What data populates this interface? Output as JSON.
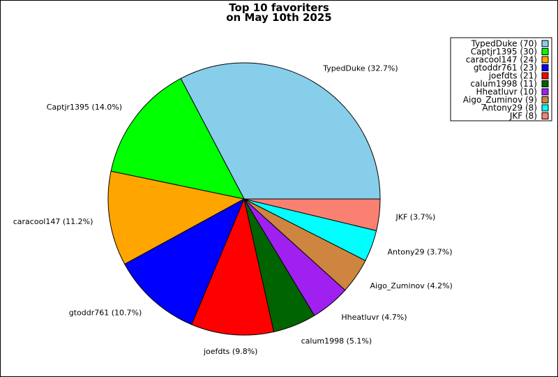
{
  "chart_data": {
    "type": "pie",
    "title": [
      "Top 10 favoriters",
      "on May 10th 2025"
    ],
    "legend_position": "top-right",
    "slices": [
      {
        "name": "TypedDuke",
        "value": 70,
        "percent_label": "32.7%",
        "legend_label": "TypedDuke (70)",
        "slice_label": "TypedDuke (32.7%)",
        "color": "#87ceeb"
      },
      {
        "name": "Captjr1395",
        "value": 30,
        "percent_label": "14.0%",
        "legend_label": "Captjr1395 (30)",
        "slice_label": "Captjr1395 (14.0%)",
        "color": "#00ff00"
      },
      {
        "name": "caracool147",
        "value": 24,
        "percent_label": "11.2%",
        "legend_label": "caracool147 (24)",
        "slice_label": "caracool147 (11.2%)",
        "color": "#ffa500"
      },
      {
        "name": "gtoddr761",
        "value": 23,
        "percent_label": "10.7%",
        "legend_label": "gtoddr761 (23)",
        "slice_label": "gtoddr761 (10.7%)",
        "color": "#0000ff"
      },
      {
        "name": "joefdts",
        "value": 21,
        "percent_label": "9.8%",
        "legend_label": "joefdts (21)",
        "slice_label": "joefdts (9.8%)",
        "color": "#ff0000"
      },
      {
        "name": "calum1998",
        "value": 11,
        "percent_label": "5.1%",
        "legend_label": "calum1998 (11)",
        "slice_label": "calum1998 (5.1%)",
        "color": "#006400"
      },
      {
        "name": "Hheatluvr",
        "value": 10,
        "percent_label": "4.7%",
        "legend_label": "Hheatluvr (10)",
        "slice_label": "Hheatluvr (4.7%)",
        "color": "#a020f0"
      },
      {
        "name": "Aigo_Zuminov",
        "value": 9,
        "percent_label": "4.2%",
        "legend_label": "Aigo_Zuminov (9)",
        "slice_label": "Aigo_Zuminov (4.2%)",
        "color": "#cd853f"
      },
      {
        "name": "Antony29",
        "value": 8,
        "percent_label": "3.7%",
        "legend_label": "Antony29 (8)",
        "slice_label": "Antony29 (3.7%)",
        "color": "#00ffff"
      },
      {
        "name": "JKF",
        "value": 8,
        "percent_label": "3.7%",
        "legend_label": "JKF (8)",
        "slice_label": "JKF (3.7%)",
        "color": "#fa8072"
      }
    ]
  }
}
